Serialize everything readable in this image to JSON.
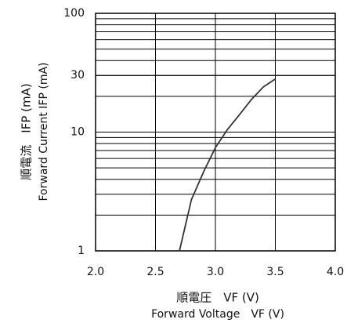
{
  "chart_data": {
    "type": "line",
    "x_label": "順電圧　VF (V)",
    "x_label_en": "Forward Voltage　VF (V)",
    "y_label": "順電流　IFP (mA)",
    "y_label_en": "Forward Current  IFP (mA)",
    "x": [
      2.7,
      2.8,
      2.9,
      3.0,
      3.1,
      3.2,
      3.3,
      3.4,
      3.5
    ],
    "values": [
      1,
      2.7,
      4.6,
      7.4,
      10.5,
      14,
      18.8,
      24,
      28
    ],
    "color": "#333333",
    "xlim": [
      2.0,
      4.0
    ],
    "xticks": [
      {
        "value": 2.0,
        "label": "2.0"
      },
      2.5,
      {
        "value": 3.0,
        "label": "3.0"
      },
      3.5,
      {
        "value": 4.0,
        "label": "4.0"
      }
    ],
    "ylim": [
      1,
      100
    ],
    "yticks": [
      1,
      10,
      30,
      100
    ],
    "log_y": true,
    "grid": true
  }
}
